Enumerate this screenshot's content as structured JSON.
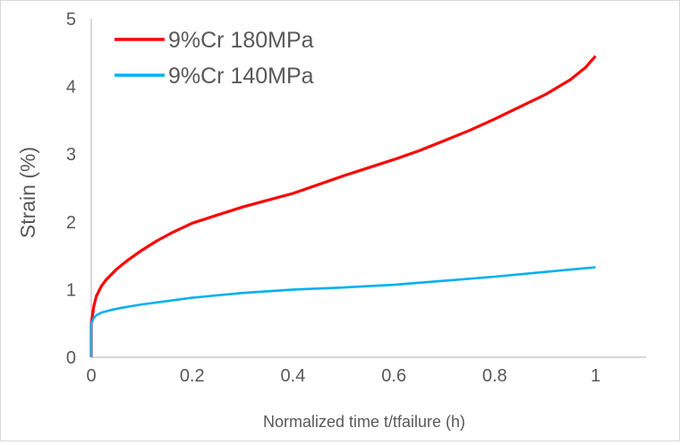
{
  "chart_data": {
    "type": "line",
    "xlabel": "Normalized time t/tfailure (h)",
    "ylabel": "Strain (%)",
    "xlim": [
      0,
      1.1
    ],
    "ylim": [
      0,
      5
    ],
    "x_ticks": [
      "0",
      "0.2",
      "0.4",
      "0.6",
      "0.8",
      "1"
    ],
    "y_ticks": [
      "0",
      "1",
      "2",
      "3",
      "4",
      "5"
    ],
    "grid": false,
    "legend_position": "top-left",
    "series": [
      {
        "name": "9%Cr 180MPa",
        "color": "#ff0000",
        "x": [
          0,
          0.005,
          0.01,
          0.02,
          0.03,
          0.05,
          0.07,
          0.1,
          0.13,
          0.16,
          0.2,
          0.25,
          0.3,
          0.35,
          0.4,
          0.45,
          0.5,
          0.55,
          0.6,
          0.65,
          0.7,
          0.75,
          0.8,
          0.85,
          0.9,
          0.95,
          0.98,
          1.0
        ],
        "y": [
          0.5,
          0.75,
          0.9,
          1.05,
          1.15,
          1.3,
          1.42,
          1.58,
          1.72,
          1.84,
          1.98,
          2.1,
          2.22,
          2.32,
          2.42,
          2.55,
          2.68,
          2.8,
          2.92,
          3.05,
          3.2,
          3.35,
          3.52,
          3.7,
          3.88,
          4.1,
          4.28,
          4.45
        ]
      },
      {
        "name": "9%Cr 140MPa",
        "color": "#00b0f0",
        "x": [
          0,
          0.005,
          0.01,
          0.02,
          0.04,
          0.06,
          0.1,
          0.15,
          0.2,
          0.3,
          0.4,
          0.5,
          0.6,
          0.7,
          0.8,
          0.9,
          1.0
        ],
        "y": [
          0.5,
          0.58,
          0.62,
          0.66,
          0.7,
          0.73,
          0.78,
          0.83,
          0.88,
          0.95,
          1.0,
          1.03,
          1.07,
          1.13,
          1.19,
          1.26,
          1.33
        ]
      }
    ]
  }
}
